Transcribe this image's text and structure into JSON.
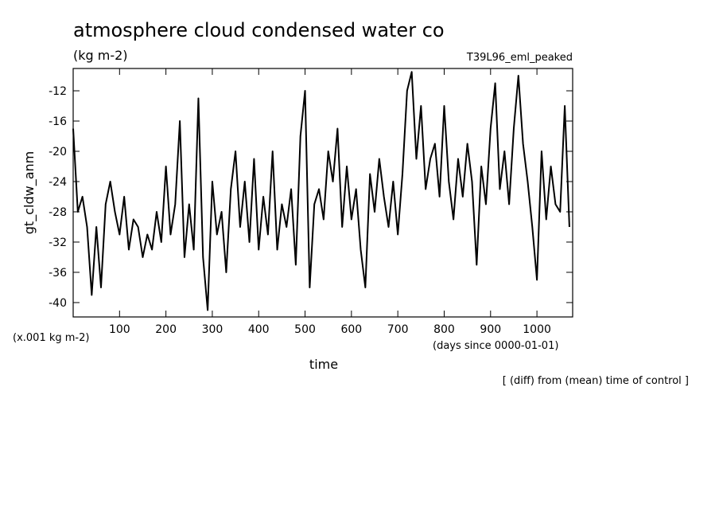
{
  "chart_data": {
    "type": "line",
    "title": "atmosphere cloud condensed water co",
    "subtitle": "(kg m-2)",
    "run_label": "T39L96_eml_peaked",
    "y_label": "gt_cldw_anm",
    "y_unit": "(x.001 kg m-2)",
    "x_label": "time",
    "x_unit": "(days since 0000-01-01)",
    "note": "[ (diff) from (mean) time of control ]",
    "xlim": [
      0,
      1077
    ],
    "ylim": [
      -41.9,
      -9.05
    ],
    "xticks": [
      100,
      200,
      300,
      400,
      500,
      600,
      700,
      800,
      900,
      1000
    ],
    "yticks": [
      -40,
      -36,
      -32,
      -28,
      -24,
      -20,
      -16,
      -12
    ],
    "x": [
      0,
      10,
      20,
      30,
      40,
      50,
      60,
      70,
      80,
      90,
      100,
      110,
      120,
      130,
      140,
      150,
      160,
      170,
      180,
      190,
      200,
      210,
      220,
      230,
      240,
      250,
      260,
      270,
      280,
      290,
      300,
      310,
      320,
      330,
      340,
      350,
      360,
      370,
      380,
      390,
      400,
      410,
      420,
      430,
      440,
      450,
      460,
      470,
      480,
      490,
      500,
      510,
      520,
      530,
      540,
      550,
      560,
      570,
      580,
      590,
      600,
      610,
      620,
      630,
      640,
      650,
      660,
      670,
      680,
      690,
      700,
      710,
      720,
      730,
      740,
      750,
      760,
      770,
      780,
      790,
      800,
      810,
      820,
      830,
      840,
      850,
      860,
      870,
      880,
      890,
      900,
      910,
      920,
      930,
      940,
      950,
      960,
      970,
      980,
      990,
      1000,
      1010,
      1020,
      1030,
      1040,
      1050,
      1060,
      1070
    ],
    "series": [
      {
        "color": "#000000",
        "values": [
          -17,
          -28,
          -26,
          -30,
          -39,
          -30,
          -38,
          -27,
          -24,
          -28,
          -31,
          -26,
          -33,
          -29,
          -30,
          -34,
          -31,
          -33,
          -28,
          -32,
          -22,
          -31,
          -27,
          -16,
          -34,
          -27,
          -33,
          -13,
          -34,
          -41,
          -24,
          -31,
          -28,
          -36,
          -25,
          -20,
          -30,
          -24,
          -32,
          -21,
          -33,
          -26,
          -31,
          -20,
          -33,
          -27,
          -30,
          -25,
          -35,
          -18,
          -12,
          -38,
          -27,
          -25,
          -29,
          -20,
          -24,
          -17,
          -30,
          -22,
          -29,
          -25,
          -33,
          -38,
          -23,
          -28,
          -21,
          -26,
          -30,
          -24,
          -31,
          -23,
          -12,
          -9.5,
          -21,
          -14,
          -25,
          -21,
          -19,
          -26,
          -14,
          -24,
          -29,
          -21,
          -26,
          -19,
          -24,
          -35,
          -22,
          -27,
          -17,
          -11,
          -25,
          -20,
          -27,
          -17,
          -10,
          -19,
          -24,
          -30,
          -37,
          -20,
          -29,
          -22,
          -27,
          -28,
          -14,
          -30
        ]
      }
    ]
  }
}
